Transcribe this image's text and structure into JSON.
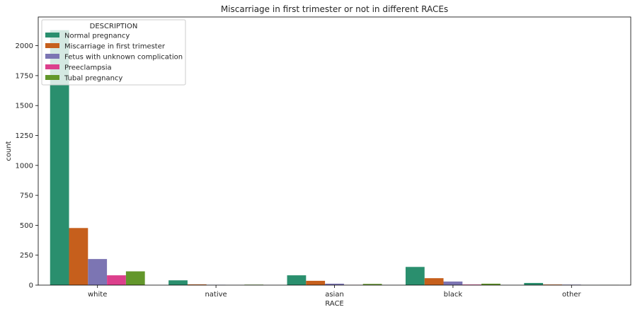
{
  "chart_data": {
    "type": "bar",
    "title": "Miscarriage in first trimester or not in different RACEs",
    "xlabel": "RACE",
    "ylabel": "count",
    "categories": [
      "white",
      "native",
      "asian",
      "black",
      "other"
    ],
    "ylim": [
      0,
      2240
    ],
    "yticks": [
      0,
      250,
      500,
      750,
      1000,
      1250,
      1500,
      1750,
      2000
    ],
    "legend": {
      "title": "DESCRIPTION",
      "position": "top-left"
    },
    "grid": false,
    "series": [
      {
        "name": "Normal pregnancy",
        "color": "#2a8f6e",
        "values": [
          2130,
          40,
          82,
          152,
          18
        ]
      },
      {
        "name": "Miscarriage in first trimester",
        "color": "#c65f1c",
        "values": [
          477,
          6,
          36,
          58,
          5
        ]
      },
      {
        "name": "Fetus with unknown complication",
        "color": "#7c75b3",
        "values": [
          218,
          2,
          12,
          30,
          4
        ]
      },
      {
        "name": "Preeclampsia",
        "color": "#dc3f8c",
        "values": [
          82,
          0,
          1,
          5,
          0
        ]
      },
      {
        "name": "Tubal pregnancy",
        "color": "#63972b",
        "values": [
          115,
          4,
          10,
          12,
          1
        ]
      }
    ]
  }
}
